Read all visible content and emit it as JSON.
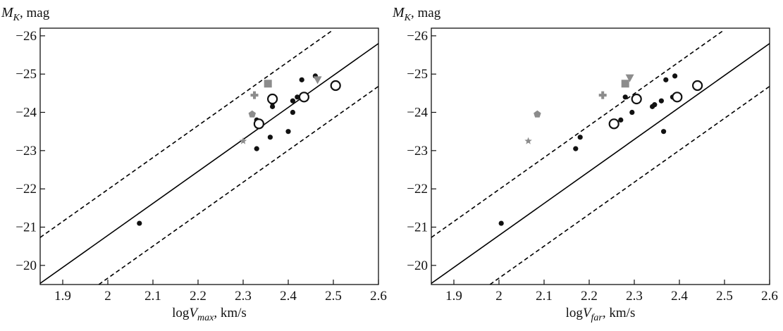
{
  "chart_data": [
    {
      "type": "scatter",
      "xlabel": [
        "log",
        "V",
        "max",
        ", km/s"
      ],
      "ylabel": [
        "M",
        "K",
        ", mag"
      ],
      "xlim": [
        1.85,
        2.6
      ],
      "xticks": [
        1.9,
        2.0,
        2.1,
        2.2,
        2.3,
        2.4,
        2.5,
        2.6
      ],
      "ylim": [
        -19.5,
        -26.2
      ],
      "yticks": [
        {
          "value": -26,
          "label": "−26"
        },
        {
          "value": -25,
          "label": "−25"
        },
        {
          "value": -24,
          "label": "−24"
        },
        {
          "value": -23,
          "label": "−23"
        },
        {
          "value": -22,
          "label": "−22"
        },
        {
          "value": -21,
          "label": "−21"
        },
        {
          "value": -20,
          "label": "−20"
        }
      ],
      "series": [
        {
          "line": "solid",
          "color": "#000000",
          "x": [
            1.85,
            2.6
          ],
          "values": [
            -19.53,
            -25.8
          ]
        },
        {
          "line": "dashed",
          "color": "#000000",
          "x": [
            1.85,
            2.5
          ],
          "values": [
            -20.73,
            -26.16
          ]
        },
        {
          "line": "dashed",
          "color": "#000000",
          "x": [
            1.98,
            2.6
          ],
          "values": [
            -19.5,
            -24.68
          ]
        },
        {
          "marker": "dot",
          "color": "#111111",
          "x": [
            2.07,
            2.33,
            2.36,
            2.33,
            2.365,
            2.365,
            2.4,
            2.41,
            2.41,
            2.42,
            2.43,
            2.46
          ],
          "values": [
            -21.1,
            -23.05,
            -23.35,
            -23.8,
            -24.15,
            -24.25,
            -23.5,
            -24.0,
            -24.3,
            -24.4,
            -24.85,
            -24.95
          ]
        },
        {
          "marker": "open-circle",
          "color": "#111111",
          "x": [
            2.335,
            2.365,
            2.435,
            2.505
          ],
          "values": [
            -23.7,
            -24.35,
            -24.4,
            -24.7
          ]
        },
        {
          "marker": "star",
          "color": "#8c8c8c",
          "x": [
            2.3
          ],
          "values": [
            -23.25
          ]
        },
        {
          "marker": "pentagon",
          "color": "#8c8c8c",
          "x": [
            2.32
          ],
          "values": [
            -23.95
          ]
        },
        {
          "marker": "plus",
          "color": "#8c8c8c",
          "x": [
            2.325
          ],
          "values": [
            -24.45
          ]
        },
        {
          "marker": "square",
          "color": "#8c8c8c",
          "x": [
            2.355
          ],
          "values": [
            -24.75
          ]
        },
        {
          "marker": "triangle-down",
          "color": "#8c8c8c",
          "x": [
            2.465
          ],
          "values": [
            -24.85
          ]
        }
      ]
    },
    {
      "type": "scatter",
      "xlabel": [
        "log",
        "V",
        "far",
        ", km/s"
      ],
      "ylabel": [
        "M",
        "K",
        ", mag"
      ],
      "xlim": [
        1.85,
        2.6
      ],
      "xticks": [
        1.9,
        2.0,
        2.1,
        2.2,
        2.3,
        2.4,
        2.5,
        2.6
      ],
      "ylim": [
        -19.5,
        -26.2
      ],
      "yticks": [
        {
          "value": -26,
          "label": "−26"
        },
        {
          "value": -25,
          "label": "−25"
        },
        {
          "value": -24,
          "label": "−24"
        },
        {
          "value": -23,
          "label": "−23"
        },
        {
          "value": -22,
          "label": "−22"
        },
        {
          "value": -21,
          "label": "−21"
        },
        {
          "value": -20,
          "label": "−20"
        }
      ],
      "series": [
        {
          "line": "solid",
          "color": "#000000",
          "x": [
            1.85,
            2.6
          ],
          "values": [
            -19.53,
            -25.8
          ]
        },
        {
          "line": "dashed",
          "color": "#000000",
          "x": [
            1.85,
            2.5
          ],
          "values": [
            -20.73,
            -26.16
          ]
        },
        {
          "line": "dashed",
          "color": "#000000",
          "x": [
            1.98,
            2.6
          ],
          "values": [
            -19.5,
            -24.68
          ]
        },
        {
          "marker": "dot",
          "color": "#111111",
          "x": [
            2.005,
            2.17,
            2.18,
            2.27,
            2.295,
            2.28,
            2.34,
            2.345,
            2.36,
            2.365,
            2.37,
            2.39,
            2.385
          ],
          "values": [
            -21.1,
            -23.05,
            -23.35,
            -23.8,
            -24.0,
            -24.4,
            -24.15,
            -24.2,
            -24.3,
            -23.5,
            -24.85,
            -24.95,
            -24.4
          ]
        },
        {
          "marker": "open-circle",
          "color": "#111111",
          "x": [
            2.255,
            2.305,
            2.395,
            2.44
          ],
          "values": [
            -23.7,
            -24.35,
            -24.4,
            -24.7
          ]
        },
        {
          "marker": "star",
          "color": "#8c8c8c",
          "x": [
            2.065
          ],
          "values": [
            -23.25
          ]
        },
        {
          "marker": "pentagon",
          "color": "#8c8c8c",
          "x": [
            2.085
          ],
          "values": [
            -23.95
          ]
        },
        {
          "marker": "plus",
          "color": "#8c8c8c",
          "x": [
            2.23
          ],
          "values": [
            -24.45
          ]
        },
        {
          "marker": "square",
          "color": "#8c8c8c",
          "x": [
            2.28
          ],
          "values": [
            -24.75
          ]
        },
        {
          "marker": "triangle-down",
          "color": "#8c8c8c",
          "x": [
            2.29
          ],
          "values": [
            -24.9
          ]
        }
      ]
    }
  ]
}
